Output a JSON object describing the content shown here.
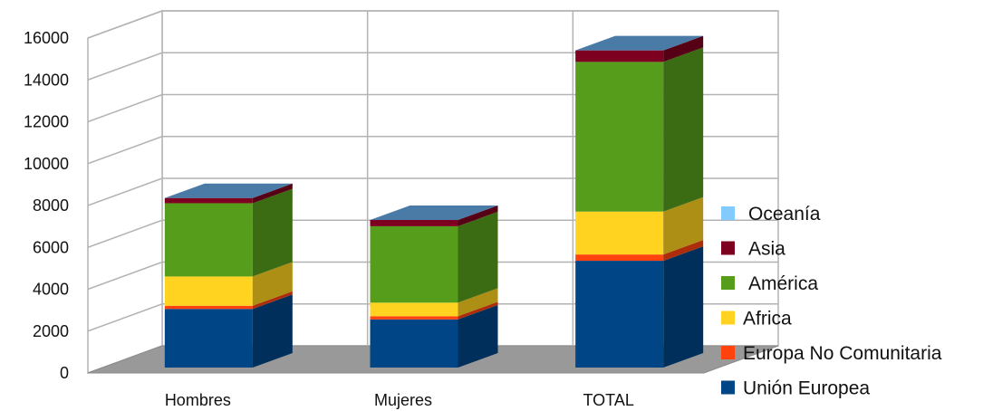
{
  "chart_data": {
    "type": "bar",
    "stacked": true,
    "three_d": true,
    "categories": [
      "Hombres",
      "Mujeres",
      "TOTAL"
    ],
    "series": [
      {
        "name": "Unión Europea",
        "values": [
          2800,
          2300,
          5100
        ],
        "color": "#004586"
      },
      {
        "name": "Europa No Comunitaria",
        "values": [
          150,
          150,
          300
        ],
        "color": "#ff420e"
      },
      {
        "name": "Africa",
        "values": [
          1400,
          650,
          2050
        ],
        "color": "#ffd320"
      },
      {
        "name": "América",
        "values": [
          3500,
          3650,
          7150
        ],
        "color": "#579d1c"
      },
      {
        "name": "Asia",
        "values": [
          250,
          300,
          550
        ],
        "color": "#7e0021"
      },
      {
        "name": "Oceanía",
        "values": [
          0,
          0,
          0
        ],
        "color": "#83caff"
      }
    ],
    "y_ticks": [
      "0",
      "2000",
      "4000",
      "6000",
      "8000",
      "10000",
      "12000",
      "14000",
      "16000"
    ],
    "ylim": [
      0,
      16000
    ],
    "legend_order": [
      "Oceanía",
      "Asia",
      "América",
      "Africa",
      "Europa No Comunitaria",
      "Unión Europea"
    ],
    "legend_position": "right",
    "grid": true,
    "top_face_color": "#4a7aa6"
  }
}
